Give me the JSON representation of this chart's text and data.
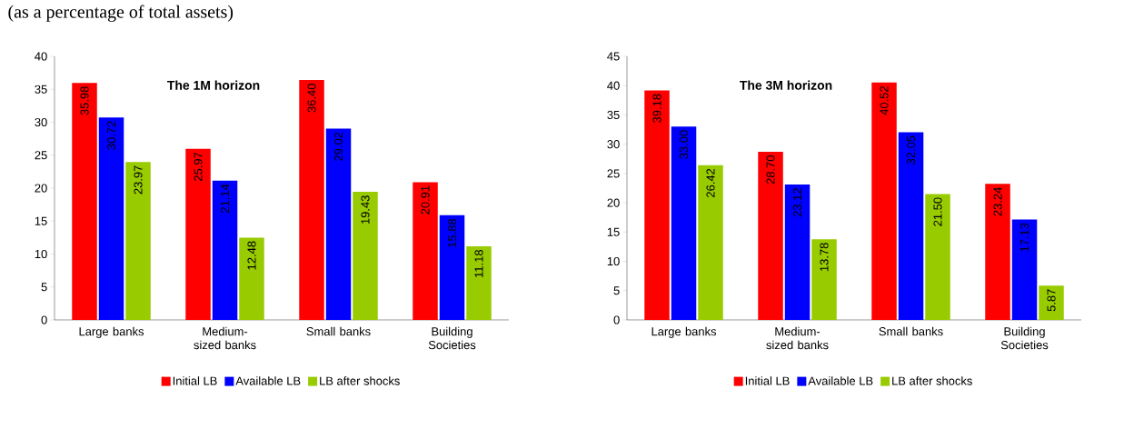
{
  "chart_data": [
    {
      "type": "bar",
      "title": "The 1M horizon",
      "subtitle": "(as a percentage of total assets)",
      "categories": [
        "Large banks",
        "Medium-sized banks",
        "Small banks",
        "Building Societies"
      ],
      "series": [
        {
          "name": "Initial LB",
          "color": "#ff0000",
          "values": [
            35.98,
            25.97,
            36.4,
            20.91
          ],
          "value_labels": [
            "35.98",
            "25.97",
            "36.40",
            "20.91"
          ]
        },
        {
          "name": "Available LB",
          "color": "#0000ff",
          "values": [
            30.72,
            21.14,
            29.02,
            15.88
          ],
          "value_labels": [
            "30.72",
            "21.14",
            "29.02",
            "15.88"
          ]
        },
        {
          "name": "LB after shocks",
          "color": "#99cc00",
          "values": [
            23.97,
            12.48,
            19.43,
            11.18
          ],
          "value_labels": [
            "23.97",
            "12.48",
            "19.43",
            "11.18"
          ]
        }
      ],
      "ylim": [
        0,
        40
      ],
      "yticks": [
        0,
        5,
        10,
        15,
        20,
        25,
        30,
        35,
        40
      ],
      "legend": "bottom"
    },
    {
      "type": "bar",
      "title": "The 3M horizon",
      "categories": [
        "Large banks",
        "Medium-sized banks",
        "Small banks",
        "Building Societies"
      ],
      "series": [
        {
          "name": "Initial LB",
          "color": "#ff0000",
          "values": [
            39.18,
            28.7,
            40.52,
            23.24
          ],
          "value_labels": [
            "39.18",
            "28.70",
            "40.52",
            "23.24"
          ]
        },
        {
          "name": "Available LB",
          "color": "#0000ff",
          "values": [
            33.0,
            23.12,
            32.05,
            17.13
          ],
          "value_labels": [
            "33.00",
            "23.12",
            "32.05",
            "17.13"
          ]
        },
        {
          "name": "LB after shocks",
          "color": "#99cc00",
          "values": [
            26.42,
            13.78,
            21.5,
            5.87
          ],
          "value_labels": [
            "26.42",
            "13.78",
            "21.50",
            "5.87"
          ]
        }
      ],
      "ylim": [
        0,
        45
      ],
      "yticks": [
        0,
        5,
        10,
        15,
        20,
        25,
        30,
        35,
        40,
        45
      ],
      "legend": "bottom"
    }
  ]
}
